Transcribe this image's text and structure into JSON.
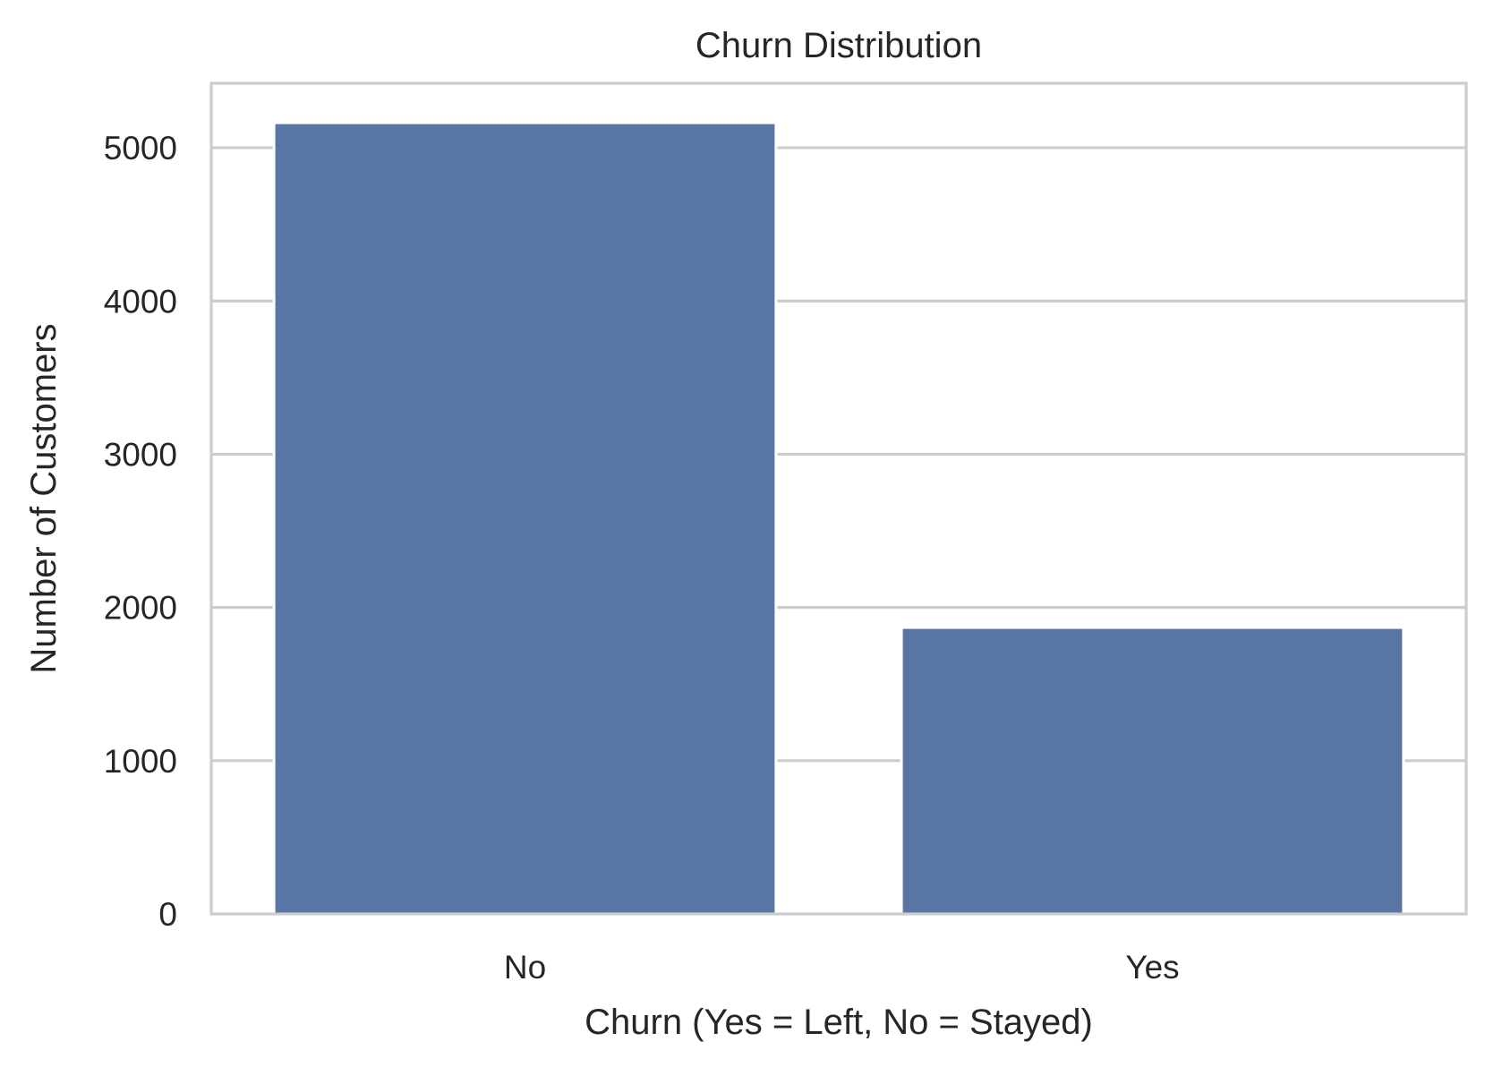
{
  "chart_data": {
    "type": "bar",
    "title": "Churn Distribution",
    "xlabel": "Churn (Yes = Left, No = Stayed)",
    "ylabel": "Number of Customers",
    "categories": [
      "No",
      "Yes"
    ],
    "values": [
      5163,
      1869
    ],
    "ylim": [
      0,
      5421
    ],
    "yticks": [
      0,
      1000,
      2000,
      3000,
      4000,
      5000
    ],
    "ytick_labels": [
      "0",
      "1000",
      "2000",
      "3000",
      "4000",
      "5000"
    ],
    "grid": true,
    "grid_axis": "y",
    "legend": "none",
    "colors": {
      "bar": "#5975a4",
      "grid": "#cccccc",
      "spine": "#cccccc",
      "text": "#262626",
      "background": "#ffffff"
    }
  }
}
